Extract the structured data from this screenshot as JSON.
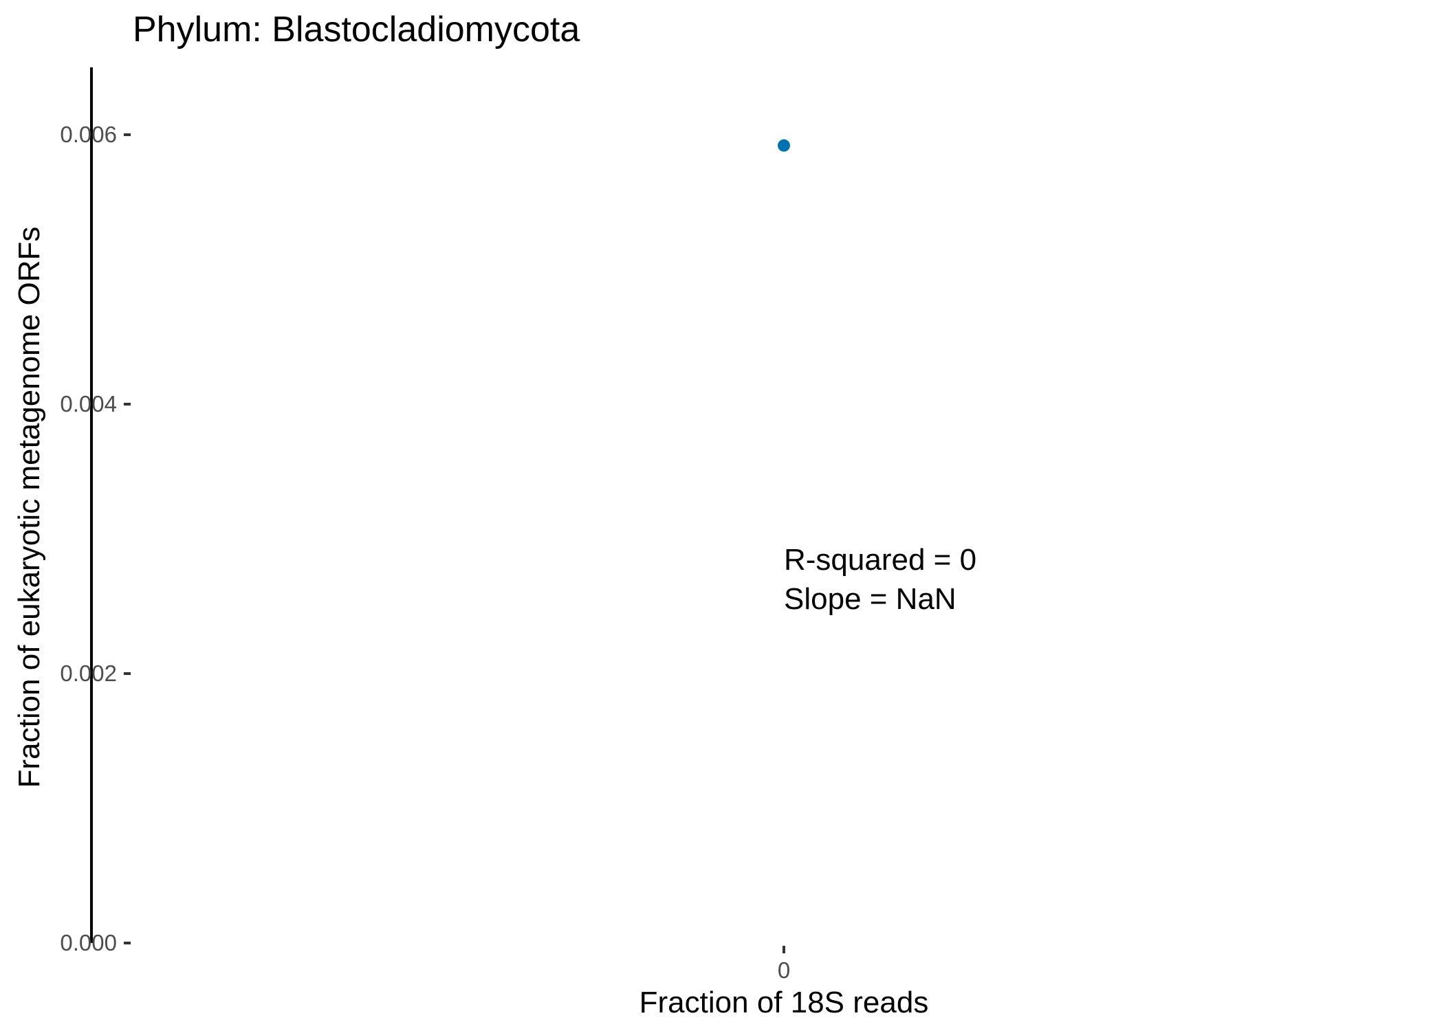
{
  "chart_data": {
    "type": "scatter",
    "title": "Phylum:  Blastocladiomycota",
    "xlabel": "Fraction of 18S reads",
    "ylabel": "Fraction of eukaryotic metagenome ORFs",
    "x_ticks": [
      "0"
    ],
    "y_ticks": [
      "0.000",
      "0.002",
      "0.004",
      "0.006"
    ],
    "ylim": [
      0,
      0.0065
    ],
    "grid": false,
    "series": [
      {
        "points": [
          {
            "x": 0,
            "y": 0.00592
          }
        ],
        "color": "#0072b2"
      }
    ],
    "annotations": [
      "R-squared =  0",
      "Slope =  NaN"
    ]
  }
}
